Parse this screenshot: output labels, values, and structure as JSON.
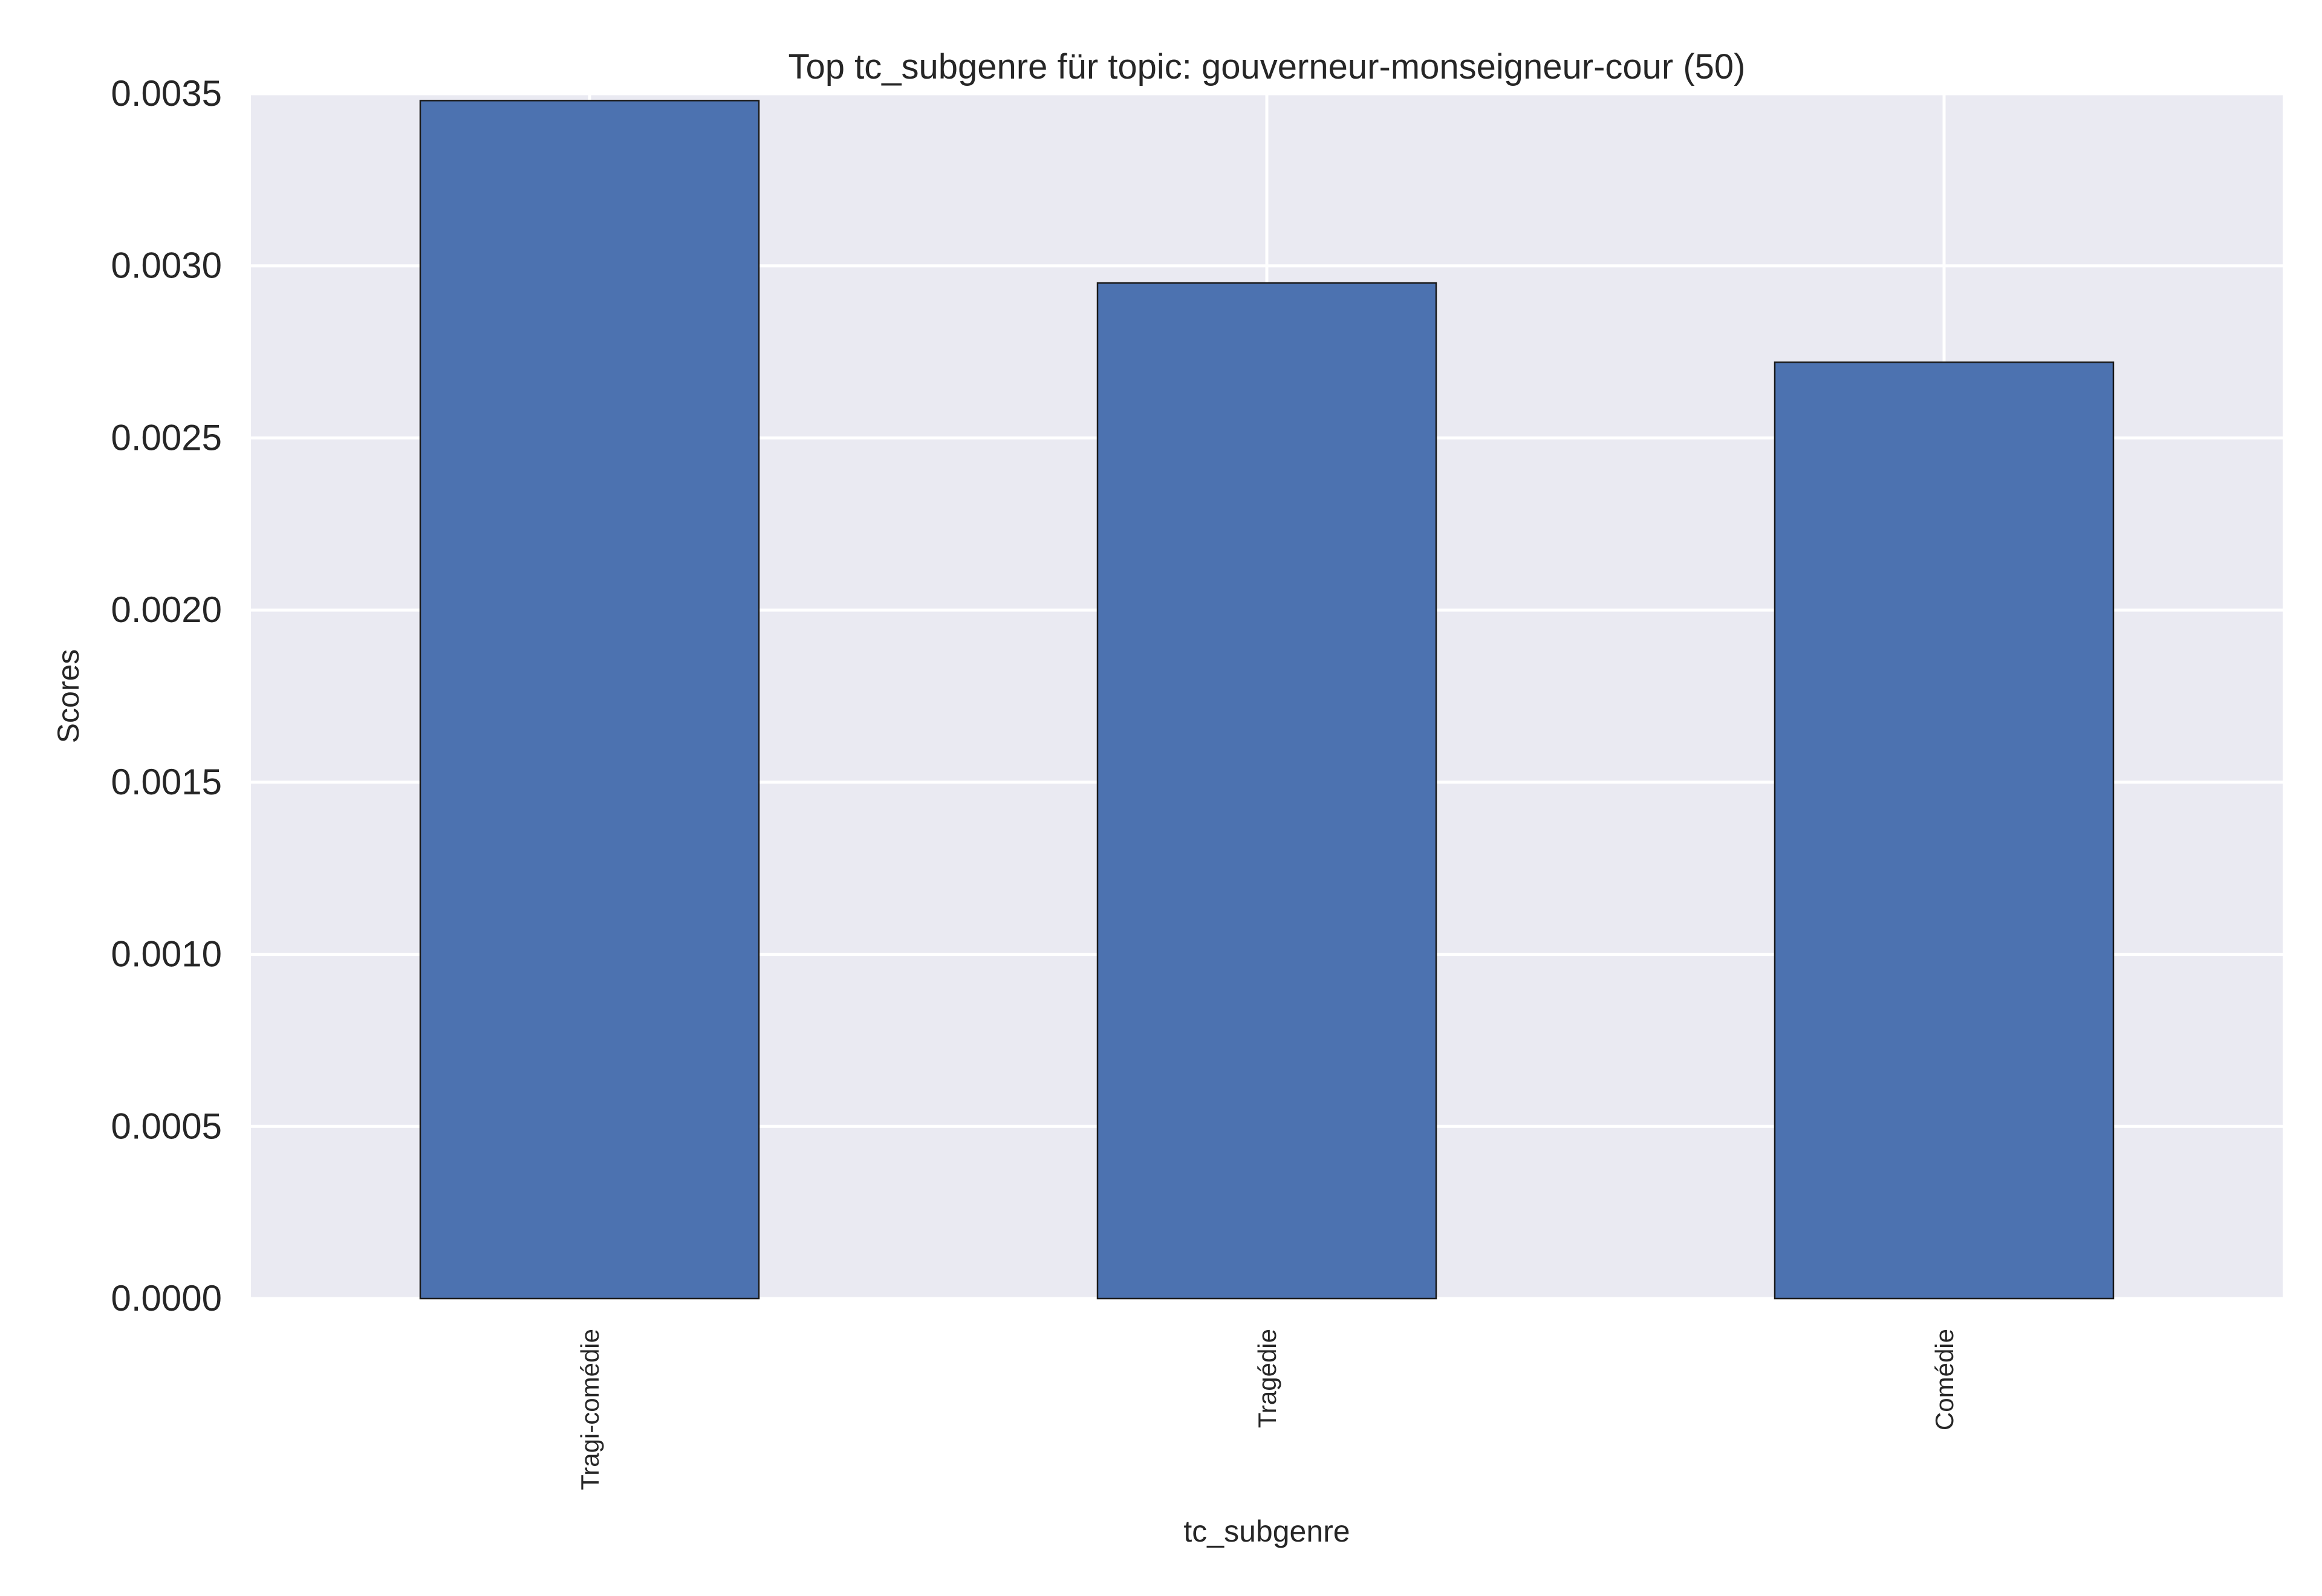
{
  "chart_data": {
    "type": "bar",
    "title": "Top tc_subgenre für topic: gouverneur-monseigneur-cour (50)",
    "xlabel": "tc_subgenre",
    "ylabel": "Scores",
    "categories": [
      "Tragi-comédie",
      "Tragédie",
      "Comédie"
    ],
    "values": [
      0.00348,
      0.00295,
      0.00272
    ],
    "ylim": [
      0,
      0.0035
    ],
    "yticks": [
      0.0,
      0.0005,
      0.001,
      0.0015,
      0.002,
      0.0025,
      0.003,
      0.0035
    ],
    "ytick_labels": [
      "0.0000",
      "0.0005",
      "0.0010",
      "0.0015",
      "0.0020",
      "0.0025",
      "0.0030",
      "0.0035"
    ],
    "grid": true,
    "colors": {
      "bar": "#4c72b0",
      "background": "#eaeaf2",
      "grid": "#ffffff"
    }
  }
}
